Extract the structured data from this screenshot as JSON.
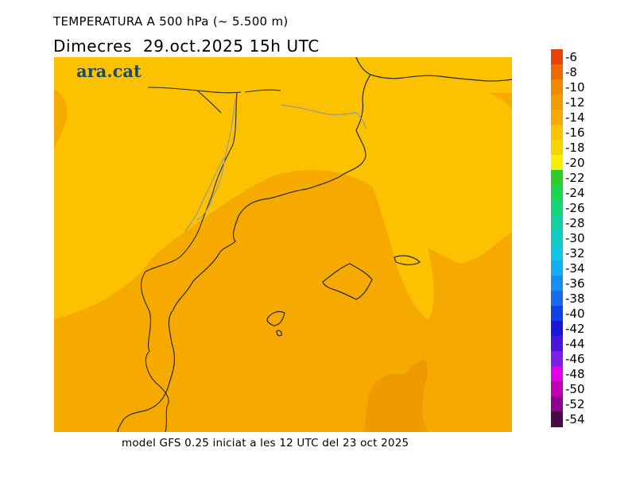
{
  "header": {
    "title": "TEMPERATURA A 500 hPa (~ 5.500 m)",
    "subtitle": "Dimecres  29.oct.2025 15h UTC"
  },
  "logo": {
    "text": "ara.cat"
  },
  "footer": {
    "text": "model GFS 0.25 iniciat a les 12 UTC del 23 oct 2025"
  },
  "colors": {
    "t_m16": "#f5c800",
    "t_m14": "#fcc200",
    "t_m12": "#f6aa00",
    "t_m10": "#ef9a00",
    "coast": "#262626",
    "border": "#999999"
  },
  "legend": {
    "labels": [
      "-6",
      "-8",
      "-10",
      "-12",
      "-14",
      "-16",
      "-18",
      "-20",
      "-22",
      "-24",
      "-26",
      "-28",
      "-30",
      "-32",
      "-34",
      "-36",
      "-38",
      "-40",
      "-42",
      "-44",
      "-46",
      "-48",
      "-50",
      "-52",
      "-54"
    ],
    "colors": [
      "#e8440a",
      "#ec6a00",
      "#ef8a00",
      "#f39c00",
      "#f6aa00",
      "#fcc200",
      "#f5d400",
      "#f8ee00",
      "#2ecc28",
      "#1bd64e",
      "#18d478",
      "#14cfa0",
      "#12cbc2",
      "#10c6e4",
      "#12aef0",
      "#1a8ef0",
      "#1a6af0",
      "#1040e8",
      "#1818dc",
      "#4a14e0",
      "#7a1ee8",
      "#e000e4",
      "#c000b0",
      "#900090",
      "#4a0a48"
    ]
  }
}
